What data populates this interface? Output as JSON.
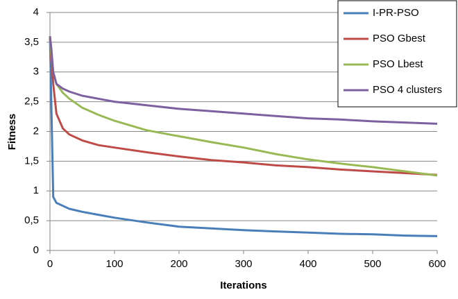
{
  "chart_data": {
    "type": "line",
    "x": [
      0,
      2,
      5,
      10,
      20,
      30,
      50,
      75,
      100,
      150,
      200,
      250,
      300,
      350,
      400,
      450,
      500,
      550,
      600
    ],
    "series": [
      {
        "name": "I-PR-PSO",
        "color": "#4a7ebb",
        "values": [
          3.6,
          2.5,
          0.9,
          0.8,
          0.75,
          0.7,
          0.65,
          0.6,
          0.55,
          0.47,
          0.4,
          0.37,
          0.34,
          0.32,
          0.3,
          0.28,
          0.27,
          0.25,
          0.24
        ]
      },
      {
        "name": "PSO Gbest",
        "color": "#be4b48",
        "values": [
          3.6,
          3.2,
          2.8,
          2.3,
          2.05,
          1.95,
          1.85,
          1.77,
          1.73,
          1.65,
          1.58,
          1.52,
          1.48,
          1.43,
          1.4,
          1.36,
          1.33,
          1.3,
          1.27
        ]
      },
      {
        "name": "PSO Lbest",
        "color": "#98b954",
        "values": [
          3.6,
          3.3,
          3.0,
          2.8,
          2.65,
          2.55,
          2.4,
          2.28,
          2.18,
          2.02,
          1.92,
          1.82,
          1.73,
          1.62,
          1.53,
          1.46,
          1.4,
          1.33,
          1.26
        ]
      },
      {
        "name": "PSO 4 clusters",
        "color": "#7d60a0",
        "values": [
          3.6,
          3.4,
          3.0,
          2.8,
          2.72,
          2.67,
          2.6,
          2.55,
          2.5,
          2.44,
          2.38,
          2.34,
          2.3,
          2.26,
          2.22,
          2.2,
          2.17,
          2.15,
          2.13
        ]
      }
    ],
    "x_label": "Iterations",
    "y_label": "Fitness",
    "xlim": [
      0,
      600
    ],
    "xticks": [
      0,
      100,
      200,
      300,
      400,
      500,
      600
    ],
    "ylim": [
      0,
      4
    ],
    "yticks": [
      0,
      {
        "value": 0.5,
        "label": "0,5"
      },
      1,
      {
        "value": 1.5,
        "label": "1,5"
      },
      2,
      {
        "value": 2.5,
        "label": "2,5"
      },
      3,
      {
        "value": 3.5,
        "label": "3,5"
      },
      4
    ],
    "grid": true,
    "legend": "upper right"
  }
}
